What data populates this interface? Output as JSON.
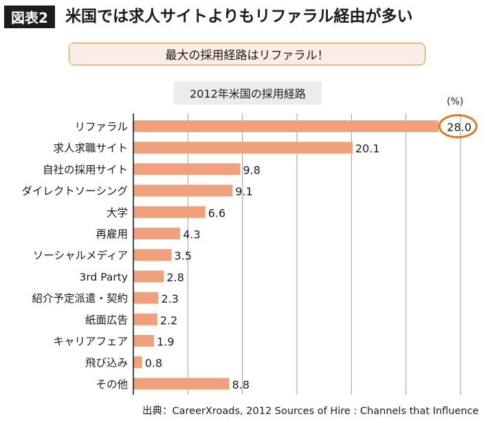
{
  "header": {
    "tag": "図表2",
    "title": "米国では求人サイトよりもリファラル経由が多い"
  },
  "callout": {
    "text": "最大の採用経路はリファラル！"
  },
  "colors": {
    "bar": "#f0a07a",
    "highlight_ring": "#e07b1f",
    "grid": "#9a9a9a",
    "axis": "#1a1a1a"
  },
  "chart_data": {
    "type": "bar",
    "orientation": "horizontal",
    "title": "2012年米国の採用経路",
    "unit_label": "(%)",
    "xlabel": "",
    "ylabel": "",
    "xlim": [
      0,
      30
    ],
    "grid_step": 5,
    "grid": true,
    "categories": [
      "リファラル",
      "求人求職サイト",
      "自社の採用サイト",
      "ダイレクトソーシング",
      "大学",
      "再雇用",
      "ソーシャルメディア",
      "3rd Party",
      "紹介予定派遣・契約",
      "紙面広告",
      "キャリアフェア",
      "飛び込み",
      "その他"
    ],
    "values": [
      28.0,
      20.1,
      9.8,
      9.1,
      6.6,
      4.3,
      3.5,
      2.8,
      2.3,
      2.2,
      1.9,
      0.8,
      8.8
    ],
    "value_labels": [
      "28.0",
      "20.1",
      "9.8",
      "9.1",
      "6.6",
      "4.3",
      "3.5",
      "2.8",
      "2.3",
      "2.2",
      "1.9",
      "0.8",
      "8.8"
    ],
    "highlighted_index": 0
  },
  "source": {
    "text": "出典：CareerXroads, 2012 Sources of Hire : Channels that Influence"
  }
}
